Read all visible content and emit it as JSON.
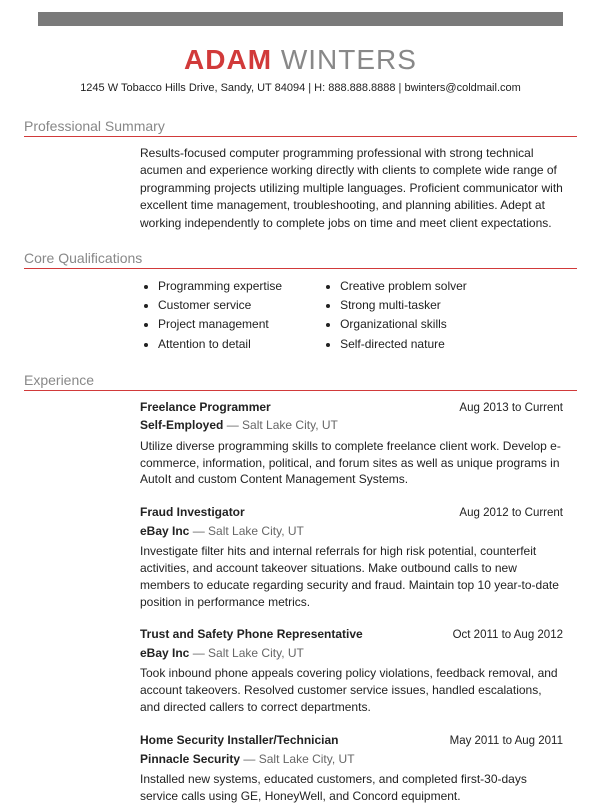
{
  "colors": {
    "accent": "#d13a3a",
    "gray": "#888888",
    "topbar": "#7a7a7a",
    "text": "#222222",
    "subtext": "#666666"
  },
  "name": {
    "first": "ADAM",
    "last": "WINTERS"
  },
  "contact": "1245 W Tobacco Hills Drive, Sandy, UT 84094 | H: 888.888.8888 | bwinters@coldmail.com",
  "sections": {
    "summary": {
      "title": "Professional Summary",
      "text": "Results-focused computer programming professional with strong technical acumen and experience working directly with clients to complete wide range of programming projects utilizing multiple languages. Proficient communicator with excellent time management, troubleshooting, and planning abilities. Adept at working independently to complete jobs on time and meet client expectations."
    },
    "quals": {
      "title": "Core Qualifications",
      "col1": [
        "Programming expertise",
        "Customer service",
        "Project management",
        "Attention to detail"
      ],
      "col2": [
        "Creative problem solver",
        "Strong multi-tasker",
        "Organizational skills",
        "Self-directed nature"
      ]
    },
    "experience": {
      "title": "Experience",
      "jobs": [
        {
          "title": "Freelance Programmer",
          "dates": "Aug 2013 to Current",
          "company": "Self-Employed",
          "location": "Salt Lake City, UT",
          "desc": "Utilize diverse programming skills to complete freelance client work. Develop e-commerce, information, political, and forum sites as well as unique programs in AutoIt and custom Content Management Systems."
        },
        {
          "title": "Fraud Investigator",
          "dates": "Aug 2012 to Current",
          "company": "eBay Inc",
          "location": "Salt Lake City, UT",
          "desc": "Investigate filter hits and internal referrals for high risk potential, counterfeit activities, and account takeover situations. Make outbound calls to new members to educate regarding security and fraud. Maintain top 10 year-to-date position in performance metrics."
        },
        {
          "title": "Trust and Safety Phone Representative",
          "dates": "Oct 2011 to Aug 2012",
          "company": "eBay Inc",
          "location": "Salt Lake City, UT",
          "desc": "Took inbound phone appeals covering policy violations, feedback removal, and account takeovers. Resolved customer service issues, handled escalations, and directed callers to correct departments."
        },
        {
          "title": "Home Security Installer/Technician",
          "dates": "May 2011 to Aug 2011",
          "company": "Pinnacle Security",
          "location": "Salt Lake City, UT",
          "desc": "Installed new systems, educated customers, and completed first-30-days service calls using GE, HoneyWell, and Concord equipment."
        }
      ]
    }
  }
}
